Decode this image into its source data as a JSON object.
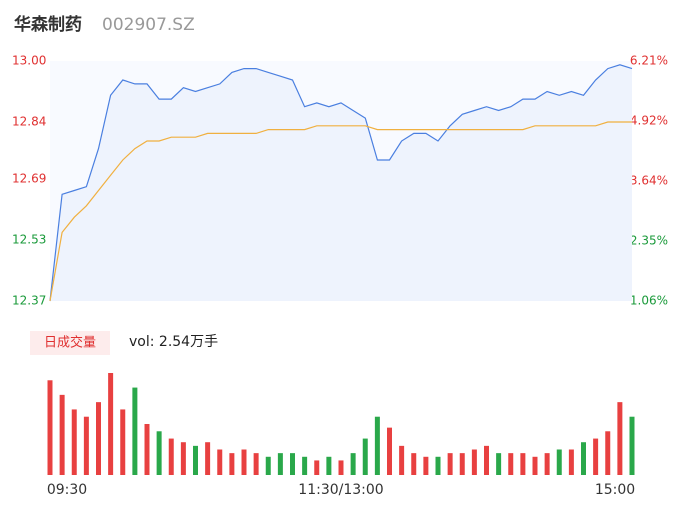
{
  "header": {
    "name": "华森制药",
    "code": "002907.SZ"
  },
  "chart_data": [
    {
      "type": "line",
      "ylim": [
        12.37,
        13
      ],
      "yticks": [
        {
          "value": 13,
          "label": "13.00"
        },
        {
          "value": 12.84,
          "label": "12.84"
        },
        {
          "value": 12.69,
          "label": "12.69"
        },
        {
          "value": 12.53,
          "label": "12.53"
        },
        {
          "value": 12.37,
          "label": "12.37"
        }
      ],
      "y2lim": [
        1.06,
        6.21
      ],
      "y2ticks": [
        {
          "value": 6.21,
          "label": "6.21%"
        },
        {
          "value": 4.92,
          "label": "4.92%"
        },
        {
          "value": 3.64,
          "label": "3.64%"
        },
        {
          "value": 2.35,
          "label": "2.35%"
        },
        {
          "value": 1.06,
          "label": "1.06%"
        }
      ],
      "categories": [
        "09:30",
        null,
        null,
        null,
        null,
        null,
        null,
        null,
        null,
        null,
        null,
        null,
        null,
        null,
        null,
        null,
        null,
        null,
        null,
        null,
        null,
        null,
        null,
        null,
        "11:30/13:00",
        null,
        null,
        null,
        null,
        null,
        null,
        null,
        null,
        null,
        null,
        null,
        null,
        null,
        null,
        null,
        null,
        null,
        null,
        null,
        null,
        null,
        null,
        null,
        "15:00"
      ],
      "series": [
        {
          "color": "#4a7fe0",
          "values": [
            12.37,
            12.65,
            12.66,
            12.67,
            12.77,
            12.91,
            12.95,
            12.94,
            12.94,
            12.9,
            12.9,
            12.93,
            12.92,
            12.93,
            12.94,
            12.97,
            12.98,
            12.98,
            12.97,
            12.96,
            12.95,
            12.88,
            12.89,
            12.88,
            12.89,
            12.87,
            12.85,
            12.74,
            12.74,
            12.79,
            12.81,
            12.81,
            12.79,
            12.83,
            12.86,
            12.87,
            12.88,
            12.87,
            12.88,
            12.9,
            12.9,
            12.92,
            12.91,
            12.92,
            12.91,
            12.95,
            12.98,
            12.99,
            12.98
          ]
        },
        {
          "color": "#f0b040",
          "values": [
            12.37,
            12.55,
            12.59,
            12.62,
            12.66,
            12.7,
            12.74,
            12.77,
            12.79,
            12.79,
            12.8,
            12.8,
            12.8,
            12.81,
            12.81,
            12.81,
            12.81,
            12.81,
            12.82,
            12.82,
            12.82,
            12.82,
            12.83,
            12.83,
            12.83,
            12.83,
            12.83,
            12.82,
            12.82,
            12.82,
            12.82,
            12.82,
            12.82,
            12.82,
            12.82,
            12.82,
            12.82,
            12.82,
            12.82,
            12.82,
            12.83,
            12.83,
            12.83,
            12.83,
            12.83,
            12.83,
            12.84,
            12.84,
            12.84
          ]
        }
      ]
    },
    {
      "type": "volume",
      "title": "日成交量",
      "subtitle": "vol: 2.54万手",
      "values": [
        1300,
        1100,
        900,
        800,
        1000,
        1400,
        900,
        1200,
        700,
        600,
        500,
        450,
        400,
        450,
        350,
        300,
        350,
        300,
        250,
        300,
        300,
        250,
        200,
        250,
        200,
        300,
        500,
        800,
        650,
        400,
        300,
        250,
        250,
        300,
        300,
        350,
        400,
        300,
        300,
        300,
        250,
        300,
        350,
        350,
        450,
        500,
        600,
        1000,
        800
      ]
    }
  ]
}
